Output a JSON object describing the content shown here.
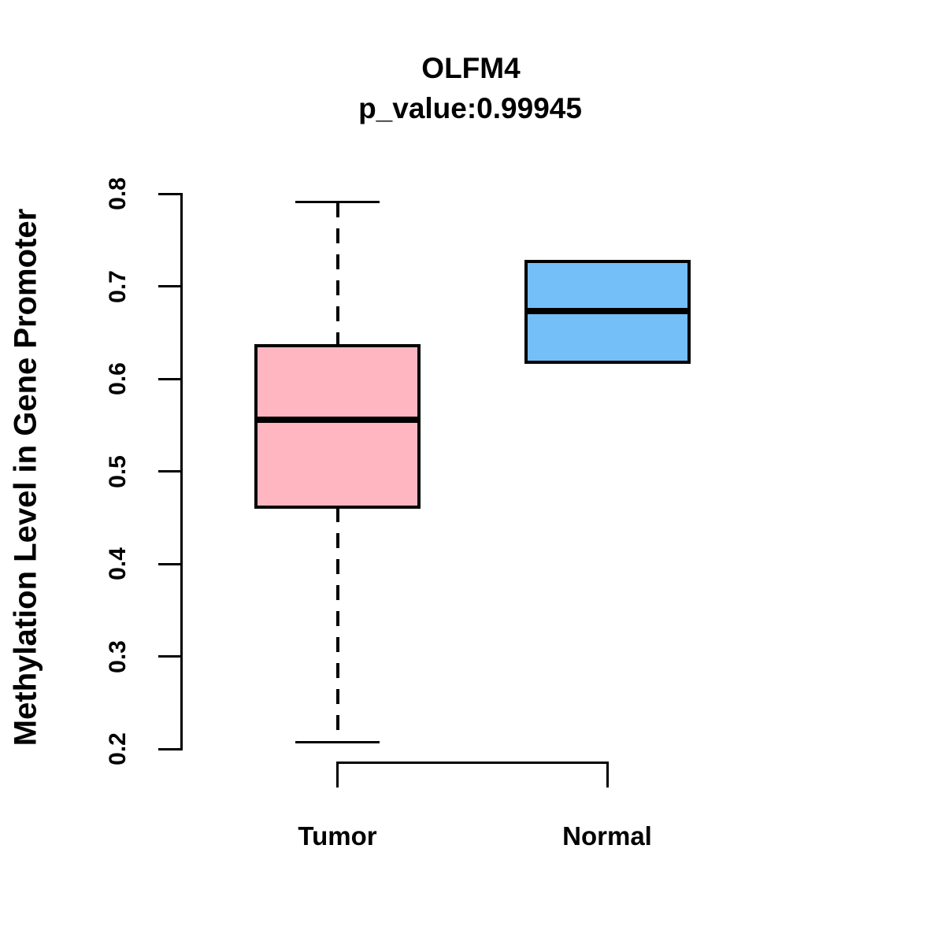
{
  "chart_data": {
    "type": "boxplot",
    "title": "OLFM4",
    "subtitle": "p_value:0.99945",
    "ylabel": "Methylation Level in Gene Promoter",
    "xlabel": "",
    "categories": [
      "Tumor",
      "Normal"
    ],
    "ylim": [
      0.2,
      0.8
    ],
    "yticks": [
      0.2,
      0.3,
      0.4,
      0.5,
      0.6,
      0.7,
      0.8
    ],
    "ytick_labels": [
      "0.2",
      "0.3",
      "0.4",
      "0.5",
      "0.6",
      "0.7",
      "0.8"
    ],
    "grid": false,
    "legend_position": "none",
    "series": [
      {
        "name": "Tumor",
        "whisker_low": 0.207,
        "q1": 0.461,
        "median": 0.556,
        "q3": 0.636,
        "whisker_high": 0.791,
        "fill_color": "#FFB6C1"
      },
      {
        "name": "Normal",
        "whisker_low": 0.618,
        "q1": 0.618,
        "median": 0.673,
        "q3": 0.727,
        "whisker_high": 0.727,
        "fill_color": "#74BFF7"
      }
    ],
    "colors": {
      "axis": "#000000",
      "text": "#000000",
      "tumor_fill": "#FFB6C1",
      "normal_fill": "#74BFF7",
      "background": "#FFFFFF"
    }
  }
}
